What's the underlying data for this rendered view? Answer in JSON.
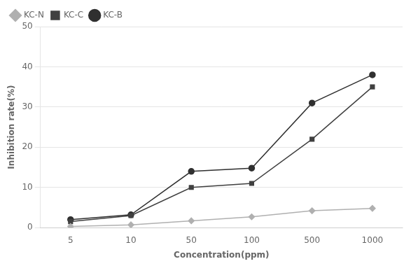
{
  "chart_data": {
    "type": "line",
    "categories": [
      "5",
      "10",
      "50",
      "100",
      "500",
      "1000"
    ],
    "series": [
      {
        "name": "KC-N",
        "color": "#b0b0b0",
        "marker": "diamond",
        "line_style": "solid",
        "values": [
          0.3,
          0.7,
          1.7,
          2.7,
          4.2,
          4.8
        ]
      },
      {
        "name": "KC-C",
        "color": "#404040",
        "marker": "square",
        "line_style": "solid",
        "values": [
          1.5,
          3.0,
          10.0,
          11.0,
          22.0,
          35.0
        ]
      },
      {
        "name": "KC-B",
        "color": "#303030",
        "marker": "circle",
        "line_style": "solid",
        "values": [
          2.0,
          3.2,
          14.0,
          14.8,
          31.0,
          38.0
        ]
      }
    ],
    "x_label": "Concentration(ppm)",
    "y_label": "Inhibition rate(%)",
    "ylim": [
      0,
      50
    ],
    "yticks": [
      0,
      10,
      20,
      30,
      40,
      50
    ],
    "grid": true,
    "legend": "upper left"
  }
}
